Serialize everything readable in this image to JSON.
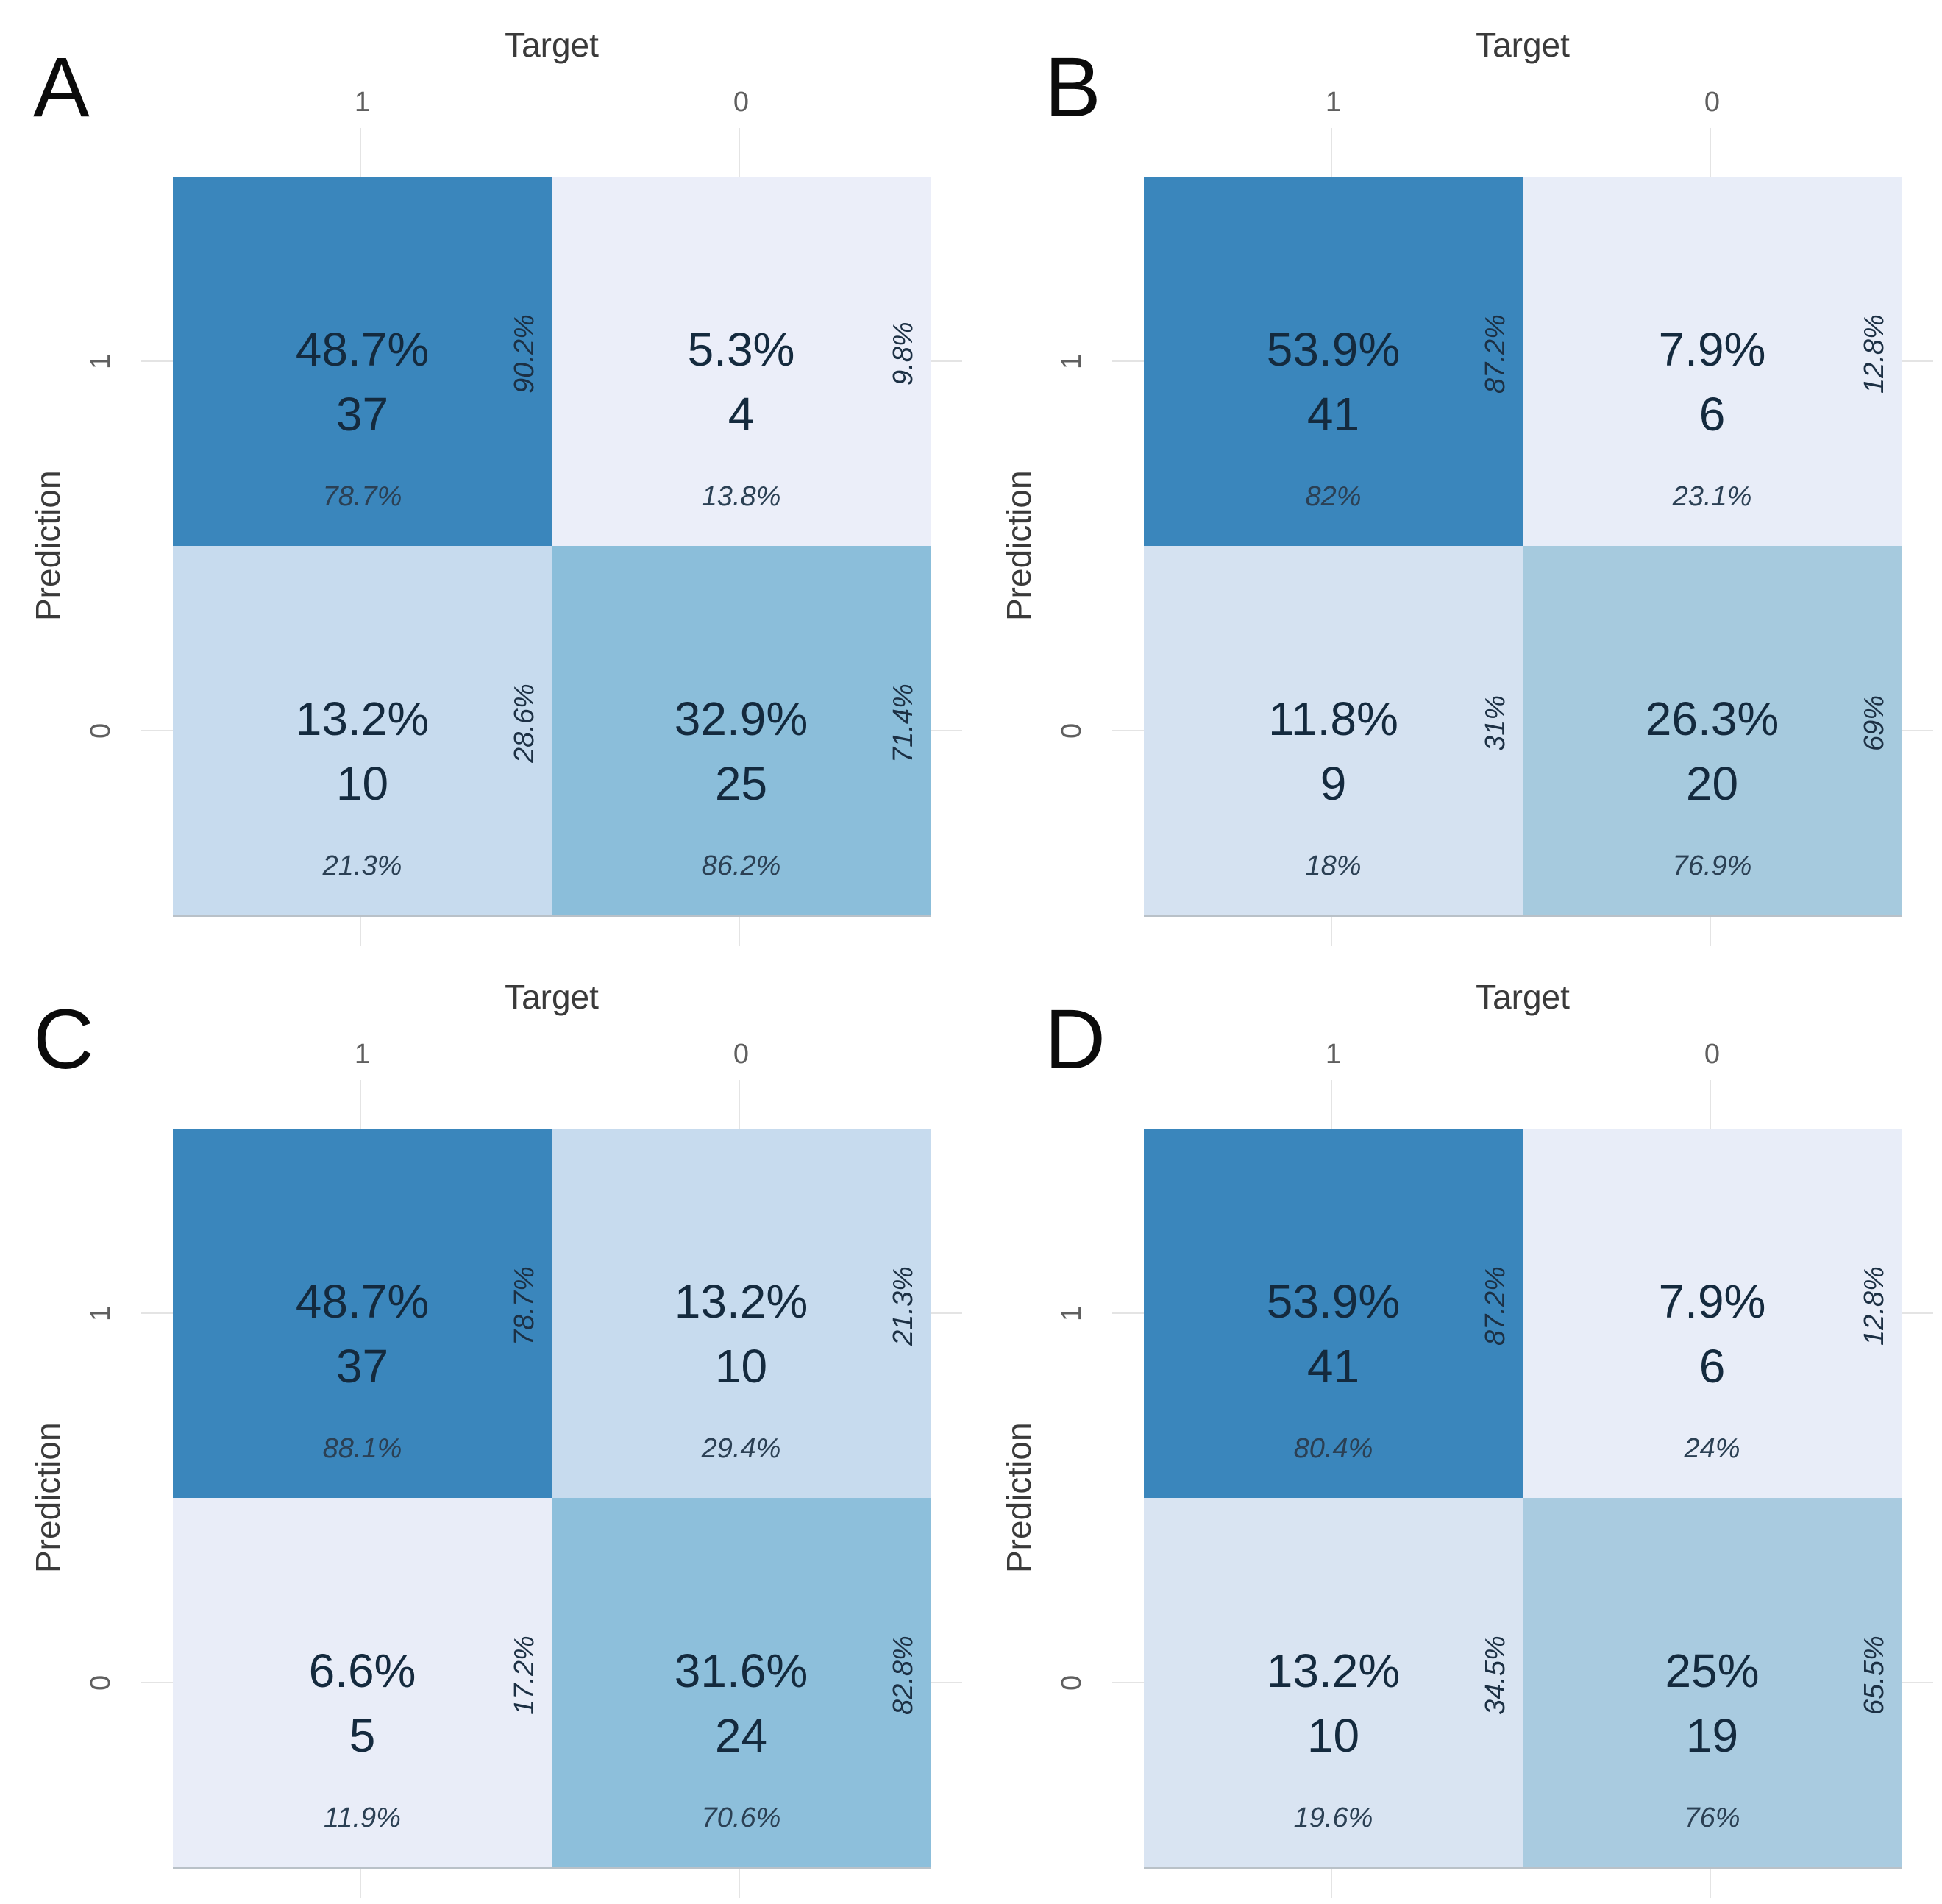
{
  "chart_data": [
    {
      "type": "heatmap",
      "panel": "A",
      "xlabel": "Target",
      "ylabel": "Prediction",
      "x_categories": [
        "1",
        "0"
      ],
      "y_categories": [
        "1",
        "0"
      ],
      "cells": [
        {
          "prediction": "1",
          "target": "1",
          "pct": "48.7%",
          "count": "37",
          "side_pct": "90.2%",
          "bottom_pct": "78.7%",
          "bg": "#3a86bc"
        },
        {
          "prediction": "1",
          "target": "0",
          "pct": "5.3%",
          "count": "4",
          "side_pct": "9.8%",
          "bottom_pct": "13.8%",
          "bg": "#ebeef9"
        },
        {
          "prediction": "0",
          "target": "1",
          "pct": "13.2%",
          "count": "10",
          "side_pct": "28.6%",
          "bottom_pct": "21.3%",
          "bg": "#c7dbee"
        },
        {
          "prediction": "0",
          "target": "0",
          "pct": "32.9%",
          "count": "25",
          "side_pct": "71.4%",
          "bottom_pct": "86.2%",
          "bg": "#8bbeda"
        }
      ]
    },
    {
      "type": "heatmap",
      "panel": "B",
      "xlabel": "Target",
      "ylabel": "Prediction",
      "x_categories": [
        "1",
        "0"
      ],
      "y_categories": [
        "1",
        "0"
      ],
      "cells": [
        {
          "prediction": "1",
          "target": "1",
          "pct": "53.9%",
          "count": "41",
          "side_pct": "87.2%",
          "bottom_pct": "82%",
          "bg": "#3a86bc"
        },
        {
          "prediction": "1",
          "target": "0",
          "pct": "7.9%",
          "count": "6",
          "side_pct": "12.8%",
          "bottom_pct": "23.1%",
          "bg": "#e8edf8"
        },
        {
          "prediction": "0",
          "target": "1",
          "pct": "11.8%",
          "count": "9",
          "side_pct": "31%",
          "bottom_pct": "18%",
          "bg": "#d5e2f1"
        },
        {
          "prediction": "0",
          "target": "0",
          "pct": "26.3%",
          "count": "20",
          "side_pct": "69%",
          "bottom_pct": "76.9%",
          "bg": "#a6cade"
        }
      ]
    },
    {
      "type": "heatmap",
      "panel": "C",
      "xlabel": "Target",
      "ylabel": "Prediction",
      "x_categories": [
        "1",
        "0"
      ],
      "y_categories": [
        "1",
        "0"
      ],
      "cells": [
        {
          "prediction": "1",
          "target": "1",
          "pct": "48.7%",
          "count": "37",
          "side_pct": "78.7%",
          "bottom_pct": "88.1%",
          "bg": "#3a86bc"
        },
        {
          "prediction": "1",
          "target": "0",
          "pct": "13.2%",
          "count": "10",
          "side_pct": "21.3%",
          "bottom_pct": "29.4%",
          "bg": "#c7dbee"
        },
        {
          "prediction": "0",
          "target": "1",
          "pct": "6.6%",
          "count": "5",
          "side_pct": "17.2%",
          "bottom_pct": "11.9%",
          "bg": "#e9edf8"
        },
        {
          "prediction": "0",
          "target": "0",
          "pct": "31.6%",
          "count": "24",
          "side_pct": "82.8%",
          "bottom_pct": "70.6%",
          "bg": "#8dbfdb"
        }
      ]
    },
    {
      "type": "heatmap",
      "panel": "D",
      "xlabel": "Target",
      "ylabel": "Prediction",
      "x_categories": [
        "1",
        "0"
      ],
      "y_categories": [
        "1",
        "0"
      ],
      "cells": [
        {
          "prediction": "1",
          "target": "1",
          "pct": "53.9%",
          "count": "41",
          "side_pct": "87.2%",
          "bottom_pct": "80.4%",
          "bg": "#3a86bc"
        },
        {
          "prediction": "1",
          "target": "0",
          "pct": "7.9%",
          "count": "6",
          "side_pct": "12.8%",
          "bottom_pct": "24%",
          "bg": "#e8edf8"
        },
        {
          "prediction": "0",
          "target": "1",
          "pct": "13.2%",
          "count": "10",
          "side_pct": "34.5%",
          "bottom_pct": "19.6%",
          "bg": "#d9e4f2"
        },
        {
          "prediction": "0",
          "target": "0",
          "pct": "25%",
          "count": "19",
          "side_pct": "65.5%",
          "bottom_pct": "76%",
          "bg": "#a9cbe0"
        }
      ]
    }
  ]
}
